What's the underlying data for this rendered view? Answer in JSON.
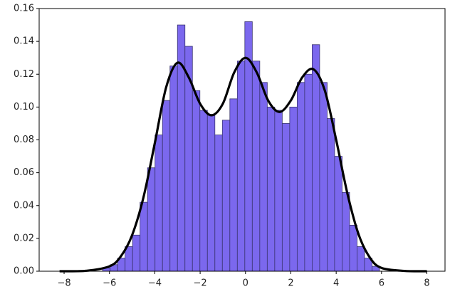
{
  "chart_data": {
    "type": "histogram",
    "bins": [
      -6.3,
      -5.97,
      -5.64,
      -5.31,
      -4.98,
      -4.65,
      -4.32,
      -3.99,
      -3.66,
      -3.33,
      -3.0,
      -2.67,
      -2.34,
      -2.01,
      -1.68,
      -1.35,
      -1.02,
      -0.69,
      -0.36,
      -0.03,
      0.3,
      0.63,
      0.96,
      1.29,
      1.62,
      1.95,
      2.28,
      2.61,
      2.94,
      3.27,
      3.6,
      3.93,
      4.26,
      4.59,
      4.92,
      5.25,
      5.58,
      5.91
    ],
    "counts": [
      0.002,
      0.004,
      0.008,
      0.015,
      0.022,
      0.042,
      0.063,
      0.083,
      0.104,
      0.125,
      0.15,
      0.137,
      0.11,
      0.098,
      0.095,
      0.083,
      0.092,
      0.105,
      0.128,
      0.152,
      0.128,
      0.115,
      0.1,
      0.098,
      0.09,
      0.1,
      0.115,
      0.12,
      0.138,
      0.115,
      0.093,
      0.07,
      0.048,
      0.028,
      0.015,
      0.008,
      0.003
    ],
    "color": "#7b68ee",
    "edgecolor": "#3a3470",
    "kde": {
      "color": "#000000",
      "x": [
        -8.2,
        -7,
        -6,
        -5.5,
        -5,
        -4.5,
        -4,
        -3.5,
        -3,
        -2.5,
        -2,
        -1.5,
        -1,
        -0.5,
        0,
        0.5,
        1,
        1.5,
        2,
        2.5,
        3,
        3.5,
        4,
        4.5,
        5,
        5.5,
        6,
        7,
        8
      ],
      "values": [
        0,
        0.0003,
        0.003,
        0.009,
        0.022,
        0.045,
        0.078,
        0.112,
        0.127,
        0.118,
        0.102,
        0.095,
        0.102,
        0.121,
        0.13,
        0.121,
        0.104,
        0.097,
        0.104,
        0.118,
        0.123,
        0.11,
        0.08,
        0.047,
        0.022,
        0.008,
        0.002,
        0.0002,
        0
      ]
    },
    "xlim": [
      -9.1,
      8.8
    ],
    "ylim": [
      0,
      0.16
    ],
    "xticks": [
      {
        "value": -8,
        "label": "−8"
      },
      {
        "value": -6,
        "label": "−6"
      },
      {
        "value": -4,
        "label": "−4"
      },
      {
        "value": -2,
        "label": "−2"
      },
      0,
      2,
      4,
      6,
      8
    ],
    "yticks": [
      {
        "value": 0,
        "label": "0.00"
      },
      {
        "value": 0.02,
        "label": "0.02"
      },
      {
        "value": 0.04,
        "label": "0.04"
      },
      {
        "value": 0.06,
        "label": "0.06"
      },
      {
        "value": 0.08,
        "label": "0.08"
      },
      {
        "value": 0.1,
        "label": "0.10"
      },
      {
        "value": 0.12,
        "label": "0.12"
      },
      {
        "value": 0.14,
        "label": "0.14"
      },
      {
        "value": 0.16,
        "label": "0.16"
      }
    ]
  }
}
